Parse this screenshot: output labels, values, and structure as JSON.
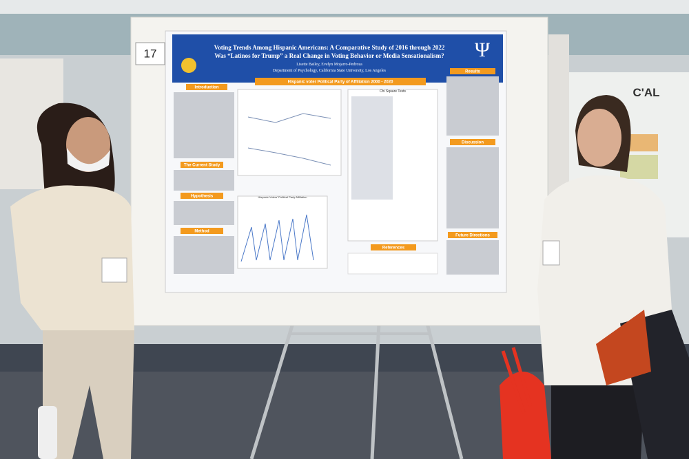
{
  "booth_number": "17",
  "poster": {
    "title_line1": "Voting Trends Among Hispanic Americans: A Comparative Study of 2016 through 2022",
    "title_line2": "Was “Latinos for Trump” a Real Change in Voting Behavior or Media Sensationalism?",
    "authors": "Lisette Bailey, Evelyn Mojarro-Pedroza",
    "department": "Department of Psychology, California State University, Los Angeles",
    "logo": "Ψ",
    "chart_title": "Hispanic voter Political Party of Affiliation 2000 - 2020",
    "table_title": "Chi Square Tests",
    "chart2_title": "Hispanic Voters' Political Party Affiliation",
    "sections": [
      "Introduction",
      "The Current Study",
      "Hypothesis",
      "Method",
      "References",
      "Results",
      "Discussion",
      "Future Directions"
    ]
  },
  "background_sign": "C'AL"
}
